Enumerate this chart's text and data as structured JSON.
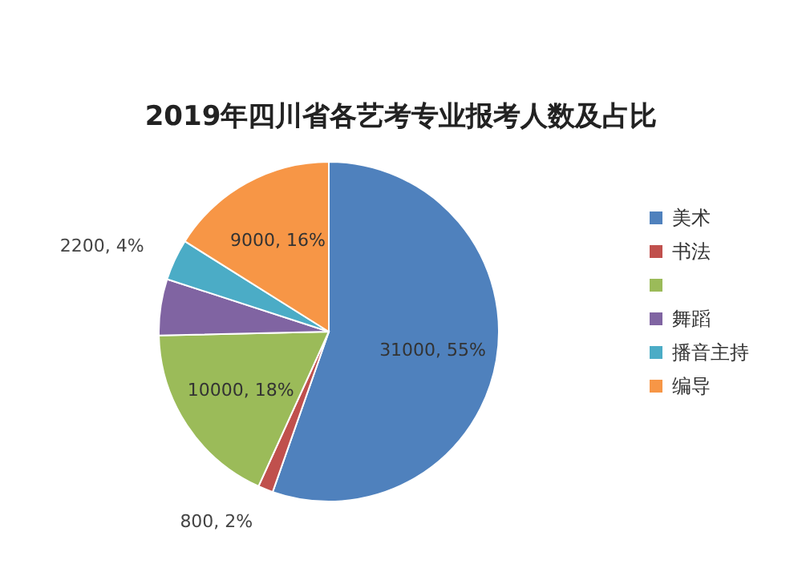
{
  "chart_data": {
    "type": "pie",
    "title": "2019年四川省各艺考专业报考人数及占比",
    "categories": [
      "美术",
      "书法",
      null,
      "舞蹈",
      "播音主持",
      "编导"
    ],
    "values": [
      31000,
      800,
      10000,
      3000,
      2200,
      9000
    ],
    "colors": [
      "#4f81bd",
      "#c0504d",
      "#9bbb59",
      "#8064a2",
      "#4bacc6",
      "#f79646"
    ],
    "value_labels": [
      "31000, 55%",
      "800, 2%",
      "10000, 18%",
      null,
      "2200, 4%",
      "9000, 16%"
    ],
    "legend": "right"
  }
}
